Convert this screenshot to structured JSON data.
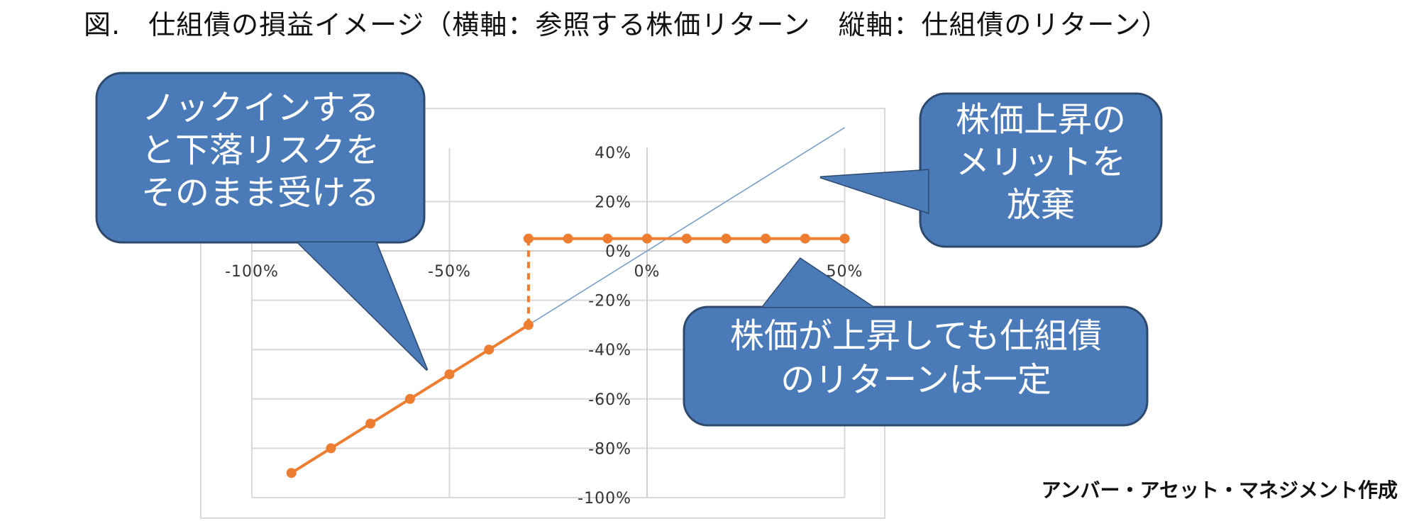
{
  "title": "図.　仕組債の損益イメージ（横軸：参照する株価リターン　縦軸：仕組債のリターン）",
  "credit": "アンバー・アセット・マネジメント作成",
  "chart_data": {
    "type": "line",
    "title": "",
    "xlabel": "参照する株価リターン",
    "ylabel": "仕組債のリターン",
    "xlim": [
      -100,
      50
    ],
    "ylim": [
      -100,
      40
    ],
    "x_ticks": [
      "-100%",
      "-50%",
      "0%",
      "50%"
    ],
    "y_ticks": [
      "40%",
      "20%",
      "0%",
      "-20%",
      "-40%",
      "-60%",
      "-80%",
      "-100%"
    ],
    "grid": true,
    "colors": {
      "series": "#ed7d31",
      "reference": "#6f99c8",
      "callout": "#4b7ab8"
    },
    "series": [
      {
        "x": [
          -90,
          -80,
          -70,
          -60,
          -50,
          -40,
          -30,
          -30,
          -20,
          -10,
          0,
          10,
          20,
          30,
          40,
          50
        ],
        "values": [
          -90,
          -80,
          -70,
          -60,
          -50,
          -40,
          -30,
          5,
          5,
          5,
          5,
          5,
          5,
          5,
          5,
          5
        ],
        "knock_in_at": -30
      },
      {
        "x": [
          -30,
          50
        ],
        "values": [
          -30,
          50
        ],
        "style": "thin"
      }
    ]
  },
  "callouts": [
    {
      "lines": [
        "ノックインする",
        "と下落リスクを",
        "そのまま受ける"
      ]
    },
    {
      "lines": [
        "株価上昇の",
        "メリットを",
        "放棄"
      ]
    },
    {
      "lines": [
        "株価が上昇しても仕組債",
        "のリターンは一定"
      ]
    }
  ]
}
